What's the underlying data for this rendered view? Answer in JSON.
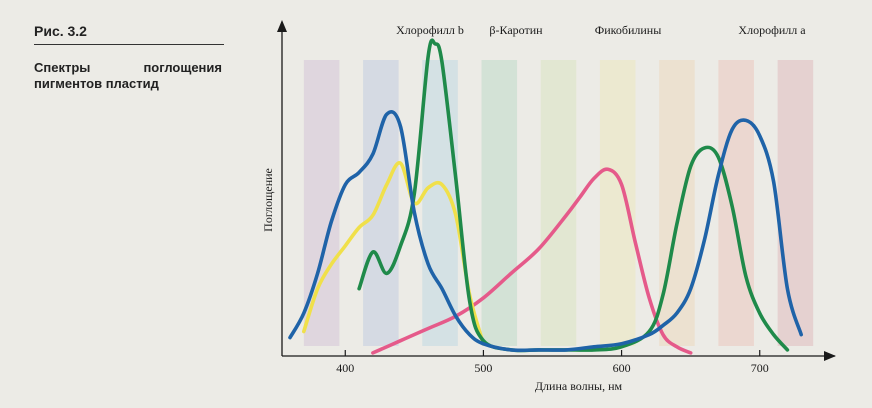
{
  "figure": {
    "number": "Рис. 3.2",
    "caption": "Спектры поглощения пигментов пластид"
  },
  "colors": {
    "chl_a": "#1f63a8",
    "chl_b": "#1f8a4a",
    "carotene": "#f0e04a",
    "phycobilins": "#e55a8a",
    "axis": "#1a1a1a",
    "bands": [
      "#8a4aa8",
      "#3c6fd0",
      "#36a2d8",
      "#2fa86a",
      "#9fd24a",
      "#f2e23c",
      "#f2a33c",
      "#e6523c",
      "#b8243a"
    ]
  },
  "chart_data": {
    "type": "line",
    "xlabel": "Длина волны, нм",
    "ylabel": "Поглощение",
    "xlim": [
      360,
      740
    ],
    "ylim": [
      0,
      1
    ],
    "x_ticks": [
      400,
      500,
      600,
      700
    ],
    "series": [
      {
        "name": "Хлорофилл a",
        "color_key": "chl_a",
        "x": [
          360,
          370,
          380,
          390,
          400,
          410,
          420,
          430,
          440,
          450,
          460,
          470,
          480,
          490,
          500,
          520,
          540,
          560,
          580,
          600,
          620,
          630,
          640,
          650,
          660,
          670,
          680,
          690,
          700,
          710,
          720,
          730
        ],
        "y": [
          0.06,
          0.14,
          0.27,
          0.44,
          0.56,
          0.6,
          0.66,
          0.79,
          0.75,
          0.47,
          0.3,
          0.22,
          0.13,
          0.07,
          0.04,
          0.02,
          0.02,
          0.02,
          0.03,
          0.04,
          0.07,
          0.1,
          0.14,
          0.22,
          0.38,
          0.59,
          0.74,
          0.77,
          0.72,
          0.57,
          0.22,
          0.07
        ]
      },
      {
        "name": "Хлорофилл b",
        "color_key": "chl_b",
        "x": [
          410,
          420,
          430,
          440,
          450,
          460,
          465,
          470,
          480,
          490,
          500,
          520,
          540,
          560,
          580,
          600,
          620,
          630,
          640,
          650,
          660,
          670,
          680,
          690,
          700,
          710,
          720
        ],
        "y": [
          0.22,
          0.34,
          0.27,
          0.36,
          0.53,
          0.98,
          1.02,
          0.96,
          0.58,
          0.18,
          0.05,
          0.02,
          0.02,
          0.02,
          0.02,
          0.03,
          0.08,
          0.2,
          0.43,
          0.62,
          0.68,
          0.65,
          0.49,
          0.26,
          0.14,
          0.07,
          0.02
        ]
      },
      {
        "name": "β-Каротин",
        "color_key": "carotene",
        "x": [
          370,
          380,
          390,
          400,
          410,
          420,
          430,
          440,
          450,
          460,
          470,
          480,
          490,
          500
        ],
        "y": [
          0.08,
          0.22,
          0.3,
          0.36,
          0.42,
          0.46,
          0.56,
          0.63,
          0.5,
          0.55,
          0.56,
          0.46,
          0.2,
          0.04
        ]
      },
      {
        "name": "Фикобилины",
        "color_key": "phycobilins",
        "x": [
          420,
          440,
          460,
          480,
          500,
          520,
          540,
          560,
          570,
          580,
          590,
          600,
          610,
          620,
          630,
          640,
          650
        ],
        "y": [
          0.01,
          0.05,
          0.09,
          0.13,
          0.19,
          0.27,
          0.35,
          0.46,
          0.52,
          0.58,
          0.61,
          0.56,
          0.37,
          0.19,
          0.07,
          0.03,
          0.01
        ]
      }
    ],
    "curve_labels": [
      "Хлорофилл b",
      "β-Каротин",
      "Фикобилины",
      "Хлорофилл a"
    ]
  }
}
